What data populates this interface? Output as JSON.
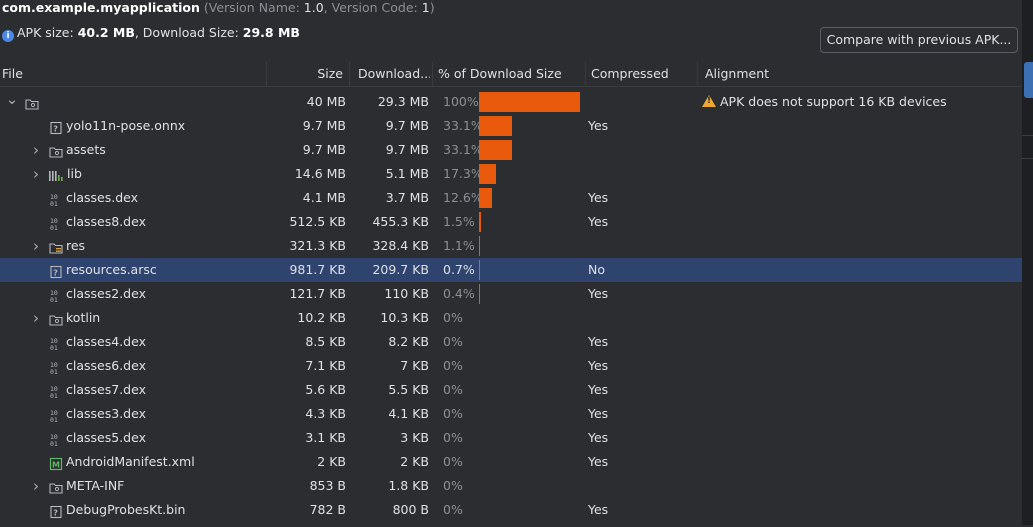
{
  "header": {
    "package": "com.example.myapplication",
    "version_prefix": "(Version Name: ",
    "version_name": "1.0",
    "version_mid": ", Version Code: ",
    "version_code": "1",
    "version_suffix": ")",
    "apk_size_label": "APK size: ",
    "apk_size": "40.2 MB",
    "download_size_label": ", Download Size: ",
    "download_size": "29.8 MB",
    "compare_button": "Compare with previous APK..."
  },
  "columns": {
    "file": "File",
    "size": "Size",
    "download": "Download...",
    "percent": "% of Download Size",
    "compressed": "Compressed",
    "alignment": "Alignment"
  },
  "colors": {
    "bar": "#e8590c",
    "selection": "#2e436e",
    "warning": "#f0a732"
  },
  "rows": [
    {
      "name": "",
      "icon": "folder-icon",
      "expandable": true,
      "expanded": true,
      "indent": 0,
      "size": "40 MB",
      "download": "29.3 MB",
      "percent": "100%",
      "fraction": 1.0,
      "compressed": "",
      "alignment": "APK does not support 16 KB devices",
      "warning": true
    },
    {
      "name": "yolo11n-pose.onnx",
      "icon": "unknown-file-icon",
      "expandable": false,
      "indent": 1,
      "size": "9.7 MB",
      "download": "9.7 MB",
      "percent": "33.1%",
      "fraction": 0.331,
      "compressed": "Yes",
      "alignment": ""
    },
    {
      "name": "assets",
      "icon": "folder-icon",
      "expandable": true,
      "indent": 1,
      "size": "9.7 MB",
      "download": "9.7 MB",
      "percent": "33.1%",
      "fraction": 0.331,
      "compressed": "",
      "alignment": ""
    },
    {
      "name": "lib",
      "icon": "library-icon",
      "expandable": true,
      "indent": 1,
      "size": "14.6 MB",
      "download": "5.1 MB",
      "percent": "17.3%",
      "fraction": 0.173,
      "compressed": "",
      "alignment": ""
    },
    {
      "name": "classes.dex",
      "icon": "dex-icon",
      "expandable": false,
      "indent": 1,
      "size": "4.1 MB",
      "download": "3.7 MB",
      "percent": "12.6%",
      "fraction": 0.126,
      "compressed": "Yes",
      "alignment": ""
    },
    {
      "name": "classes8.dex",
      "icon": "dex-icon",
      "expandable": false,
      "indent": 1,
      "size": "512.5 KB",
      "download": "455.3 KB",
      "percent": "1.5%",
      "fraction": 0.015,
      "compressed": "Yes",
      "alignment": ""
    },
    {
      "name": "res",
      "icon": "res-folder-icon",
      "expandable": true,
      "indent": 1,
      "size": "321.3 KB",
      "download": "328.4 KB",
      "percent": "1.1%",
      "fraction": 0.011,
      "compressed": "",
      "alignment": ""
    },
    {
      "name": "resources.arsc",
      "icon": "unknown-file-icon",
      "expandable": false,
      "indent": 1,
      "size": "981.7 KB",
      "download": "209.7 KB",
      "percent": "0.7%",
      "fraction": 0.007,
      "compressed": "No",
      "alignment": "",
      "selected": true
    },
    {
      "name": "classes2.dex",
      "icon": "dex-icon",
      "expandable": false,
      "indent": 1,
      "size": "121.7 KB",
      "download": "110 KB",
      "percent": "0.4%",
      "fraction": 0.004,
      "compressed": "Yes",
      "alignment": ""
    },
    {
      "name": "kotlin",
      "icon": "folder-icon",
      "expandable": true,
      "indent": 1,
      "size": "10.2 KB",
      "download": "10.3 KB",
      "percent": "0%",
      "fraction": 0,
      "compressed": "",
      "alignment": ""
    },
    {
      "name": "classes4.dex",
      "icon": "dex-icon",
      "expandable": false,
      "indent": 1,
      "size": "8.5 KB",
      "download": "8.2 KB",
      "percent": "0%",
      "fraction": 0,
      "compressed": "Yes",
      "alignment": ""
    },
    {
      "name": "classes6.dex",
      "icon": "dex-icon",
      "expandable": false,
      "indent": 1,
      "size": "7.1 KB",
      "download": "7 KB",
      "percent": "0%",
      "fraction": 0,
      "compressed": "Yes",
      "alignment": ""
    },
    {
      "name": "classes7.dex",
      "icon": "dex-icon",
      "expandable": false,
      "indent": 1,
      "size": "5.6 KB",
      "download": "5.5 KB",
      "percent": "0%",
      "fraction": 0,
      "compressed": "Yes",
      "alignment": ""
    },
    {
      "name": "classes3.dex",
      "icon": "dex-icon",
      "expandable": false,
      "indent": 1,
      "size": "4.3 KB",
      "download": "4.1 KB",
      "percent": "0%",
      "fraction": 0,
      "compressed": "Yes",
      "alignment": ""
    },
    {
      "name": "classes5.dex",
      "icon": "dex-icon",
      "expandable": false,
      "indent": 1,
      "size": "3.1 KB",
      "download": "3 KB",
      "percent": "0%",
      "fraction": 0,
      "compressed": "Yes",
      "alignment": ""
    },
    {
      "name": "AndroidManifest.xml",
      "icon": "manifest-icon",
      "expandable": false,
      "indent": 1,
      "size": "2 KB",
      "download": "2 KB",
      "percent": "0%",
      "fraction": 0,
      "compressed": "Yes",
      "alignment": ""
    },
    {
      "name": "META-INF",
      "icon": "folder-icon",
      "expandable": true,
      "indent": 1,
      "size": "853 B",
      "download": "1.8 KB",
      "percent": "0%",
      "fraction": 0,
      "compressed": "",
      "alignment": ""
    },
    {
      "name": "DebugProbesKt.bin",
      "icon": "unknown-file-icon",
      "expandable": false,
      "indent": 1,
      "size": "782 B",
      "download": "800 B",
      "percent": "0%",
      "fraction": 0,
      "compressed": "Yes",
      "alignment": ""
    }
  ]
}
